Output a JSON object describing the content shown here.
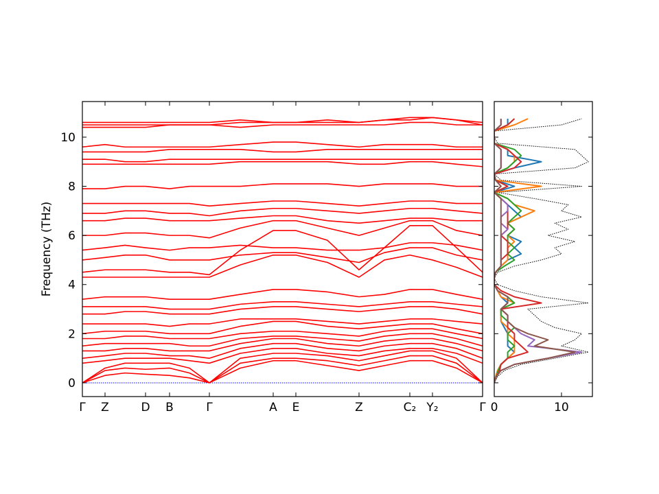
{
  "chart_data": [
    {
      "type": "line",
      "ylabel": "Frequency (THz)",
      "x": [
        0,
        0.33,
        0.62,
        0.92,
        1.27,
        1.56,
        1.85,
        2.3,
        2.78,
        3.11,
        3.57,
        4.03,
        4.4,
        4.77,
        5.1,
        5.45,
        5.83
      ],
      "xlim": [
        0,
        5.83
      ],
      "xticks": [
        {
          "value": 0,
          "label": "Γ"
        },
        {
          "value": 0.33,
          "label": "Z"
        },
        {
          "value": 0.92,
          "label": "D"
        },
        {
          "value": 1.27,
          "label": "B"
        },
        {
          "value": 1.85,
          "label": "Γ"
        },
        {
          "value": 2.78,
          "label": "A"
        },
        {
          "value": 3.11,
          "label": "E"
        },
        {
          "value": 4.03,
          "label": "Z"
        },
        {
          "value": 4.77,
          "label": "C₂"
        },
        {
          "value": 5.1,
          "label": "Y₂"
        },
        {
          "value": 5.83,
          "label": "Γ"
        }
      ],
      "ylim": [
        -0.56,
        11.45
      ],
      "yticks": [
        0,
        2,
        4,
        6,
        8,
        10
      ],
      "show_ytick_labels": true,
      "series": [
        {
          "color": "#0000ff",
          "dash": "dotted",
          "values": [
            0,
            0,
            0,
            0,
            0,
            0,
            0,
            0,
            0,
            0,
            0,
            0,
            0,
            0,
            0,
            0,
            0
          ]
        },
        {
          "color": "#ff0000",
          "values": [
            0,
            0.3,
            0.4,
            0.35,
            0.3,
            0.2,
            0,
            0.6,
            0.9,
            0.9,
            0.7,
            0.5,
            0.7,
            0.9,
            0.9,
            0.6,
            0
          ]
        },
        {
          "color": "#ff0000",
          "values": [
            0,
            0.5,
            0.6,
            0.55,
            0.6,
            0.4,
            0,
            0.8,
            1.0,
            1.0,
            0.9,
            0.7,
            0.9,
            1.1,
            1.1,
            0.8,
            0
          ]
        },
        {
          "color": "#ff0000",
          "values": [
            0,
            0.6,
            0.8,
            0.8,
            0.8,
            0.6,
            0,
            1.0,
            1.2,
            1.2,
            1.1,
            0.9,
            1.1,
            1.3,
            1.3,
            1.0,
            0
          ]
        },
        {
          "color": "#ff0000",
          "values": [
            0.8,
            0.9,
            1.0,
            1.0,
            1.0,
            0.9,
            0.8,
            1.2,
            1.4,
            1.4,
            1.2,
            1.1,
            1.3,
            1.4,
            1.4,
            1.2,
            0.8
          ]
        },
        {
          "color": "#ff0000",
          "values": [
            1.0,
            1.1,
            1.2,
            1.2,
            1.1,
            1.1,
            1.0,
            1.4,
            1.6,
            1.6,
            1.4,
            1.3,
            1.5,
            1.6,
            1.6,
            1.4,
            1.0
          ]
        },
        {
          "color": "#ff0000",
          "values": [
            1.3,
            1.3,
            1.4,
            1.4,
            1.3,
            1.3,
            1.3,
            1.6,
            1.8,
            1.8,
            1.6,
            1.5,
            1.7,
            1.8,
            1.8,
            1.6,
            1.3
          ]
        },
        {
          "color": "#ff0000",
          "values": [
            1.5,
            1.6,
            1.6,
            1.6,
            1.6,
            1.5,
            1.5,
            1.8,
            1.9,
            1.9,
            1.8,
            1.7,
            1.9,
            2.0,
            2.0,
            1.8,
            1.5
          ]
        },
        {
          "color": "#ff0000",
          "values": [
            1.8,
            1.8,
            1.9,
            1.9,
            1.8,
            1.8,
            1.8,
            2.0,
            2.1,
            2.1,
            2.0,
            1.9,
            2.1,
            2.2,
            2.2,
            2.0,
            1.8
          ]
        },
        {
          "color": "#ff0000",
          "values": [
            2.0,
            2.1,
            2.1,
            2.1,
            2.0,
            2.0,
            2.0,
            2.3,
            2.5,
            2.5,
            2.3,
            2.2,
            2.3,
            2.4,
            2.4,
            2.2,
            2.0
          ]
        },
        {
          "color": "#ff0000",
          "values": [
            2.4,
            2.4,
            2.4,
            2.4,
            2.3,
            2.4,
            2.4,
            2.6,
            2.6,
            2.6,
            2.5,
            2.4,
            2.5,
            2.6,
            2.6,
            2.5,
            2.4
          ]
        },
        {
          "color": "#ff0000",
          "values": [
            2.8,
            2.8,
            2.9,
            2.9,
            2.8,
            2.8,
            2.8,
            3.0,
            3.1,
            3.1,
            3.0,
            2.9,
            3.0,
            3.1,
            3.1,
            3.0,
            2.8
          ]
        },
        {
          "color": "#ff0000",
          "values": [
            3.1,
            3.1,
            3.1,
            3.1,
            3.0,
            3.0,
            3.0,
            3.2,
            3.3,
            3.3,
            3.2,
            3.1,
            3.2,
            3.3,
            3.3,
            3.2,
            3.1
          ]
        },
        {
          "color": "#ff0000",
          "values": [
            3.4,
            3.5,
            3.5,
            3.5,
            3.4,
            3.4,
            3.4,
            3.6,
            3.8,
            3.8,
            3.7,
            3.5,
            3.6,
            3.8,
            3.8,
            3.6,
            3.4
          ]
        },
        {
          "color": "#ff0000",
          "values": [
            4.3,
            4.3,
            4.3,
            4.3,
            4.3,
            4.3,
            4.3,
            4.8,
            5.2,
            5.2,
            4.9,
            4.3,
            5.0,
            5.2,
            5.0,
            4.7,
            4.3
          ]
        },
        {
          "color": "#ff0000",
          "values": [
            4.5,
            4.6,
            4.6,
            4.6,
            4.5,
            4.5,
            4.4,
            5.4,
            6.2,
            6.2,
            5.8,
            4.6,
            5.5,
            6.4,
            6.4,
            5.5,
            4.5
          ]
        },
        {
          "color": "#ff0000",
          "values": [
            5.0,
            5.1,
            5.2,
            5.2,
            5.0,
            5.0,
            5.0,
            5.2,
            5.3,
            5.3,
            5.1,
            4.9,
            5.3,
            5.5,
            5.5,
            5.2,
            5.0
          ]
        },
        {
          "color": "#ff0000",
          "values": [
            5.4,
            5.5,
            5.6,
            5.5,
            5.4,
            5.5,
            5.5,
            5.6,
            5.5,
            5.5,
            5.4,
            5.4,
            5.5,
            5.7,
            5.7,
            5.6,
            5.4
          ]
        },
        {
          "color": "#ff0000",
          "values": [
            6.0,
            6.0,
            6.1,
            6.1,
            6.0,
            6.0,
            5.9,
            6.3,
            6.6,
            6.6,
            6.3,
            6.0,
            6.3,
            6.6,
            6.6,
            6.2,
            6.0
          ]
        },
        {
          "color": "#ff0000",
          "values": [
            6.6,
            6.6,
            6.7,
            6.7,
            6.6,
            6.6,
            6.6,
            6.7,
            6.8,
            6.8,
            6.6,
            6.5,
            6.6,
            6.7,
            6.7,
            6.6,
            6.6
          ]
        },
        {
          "color": "#ff0000",
          "values": [
            6.9,
            6.9,
            7.0,
            7.0,
            6.9,
            6.9,
            6.8,
            7.0,
            7.1,
            7.1,
            7.0,
            6.9,
            7.0,
            7.1,
            7.1,
            7.0,
            6.9
          ]
        },
        {
          "color": "#ff0000",
          "values": [
            7.3,
            7.3,
            7.3,
            7.3,
            7.3,
            7.3,
            7.2,
            7.3,
            7.4,
            7.4,
            7.3,
            7.2,
            7.3,
            7.4,
            7.4,
            7.3,
            7.3
          ]
        },
        {
          "color": "#ff0000",
          "values": [
            7.9,
            7.9,
            8.0,
            8.0,
            7.9,
            8.0,
            8.0,
            8.0,
            8.1,
            8.1,
            8.1,
            8.0,
            8.1,
            8.1,
            8.1,
            8.0,
            8.0
          ]
        },
        {
          "color": "#ff0000",
          "values": [
            8.9,
            8.9,
            8.9,
            8.9,
            8.9,
            8.9,
            8.9,
            9.0,
            9.0,
            9.0,
            9.0,
            8.9,
            8.9,
            9.0,
            9.0,
            8.9,
            8.8
          ]
        },
        {
          "color": "#ff0000",
          "values": [
            9.1,
            9.1,
            9.0,
            9.0,
            9.1,
            9.1,
            9.1,
            9.1,
            9.1,
            9.1,
            9.1,
            9.1,
            9.1,
            9.1,
            9.1,
            9.1,
            9.1
          ]
        },
        {
          "color": "#ff0000",
          "values": [
            9.4,
            9.4,
            9.4,
            9.4,
            9.5,
            9.5,
            9.5,
            9.5,
            9.4,
            9.4,
            9.5,
            9.5,
            9.5,
            9.5,
            9.5,
            9.5,
            9.5
          ]
        },
        {
          "color": "#ff0000",
          "values": [
            9.6,
            9.7,
            9.6,
            9.6,
            9.6,
            9.6,
            9.6,
            9.7,
            9.8,
            9.8,
            9.7,
            9.6,
            9.7,
            9.7,
            9.7,
            9.6,
            9.6
          ]
        },
        {
          "color": "#ff0000",
          "values": [
            10.4,
            10.4,
            10.4,
            10.4,
            10.5,
            10.5,
            10.5,
            10.4,
            10.5,
            10.5,
            10.5,
            10.5,
            10.5,
            10.6,
            10.6,
            10.5,
            10.5
          ]
        },
        {
          "color": "#ff0000",
          "values": [
            10.5,
            10.5,
            10.5,
            10.5,
            10.5,
            10.5,
            10.5,
            10.6,
            10.6,
            10.6,
            10.6,
            10.6,
            10.7,
            10.8,
            10.8,
            10.7,
            10.5
          ]
        },
        {
          "color": "#ff0000",
          "values": [
            10.6,
            10.6,
            10.6,
            10.6,
            10.6,
            10.6,
            10.6,
            10.7,
            10.6,
            10.6,
            10.7,
            10.6,
            10.7,
            10.7,
            10.8,
            10.7,
            10.6
          ]
        }
      ]
    },
    {
      "type": "dos",
      "frequencies": [
        0,
        0.25,
        0.5,
        0.75,
        1,
        1.25,
        1.5,
        1.75,
        2,
        2.25,
        2.5,
        2.75,
        3,
        3.25,
        3.5,
        3.75,
        4,
        4.25,
        4.5,
        4.75,
        5,
        5.25,
        5.5,
        5.75,
        6,
        6.25,
        6.5,
        6.75,
        7,
        7.25,
        7.5,
        7.75,
        8,
        8.25,
        8.5,
        8.75,
        9,
        9.25,
        9.5,
        9.75,
        10,
        10.25,
        10.5,
        10.75
      ],
      "xlim": [
        0,
        14.6
      ],
      "xticks": [
        0,
        10
      ],
      "ylim": [
        -0.56,
        11.45
      ],
      "yticks": [
        0,
        2,
        4,
        6,
        8,
        10
      ],
      "show_ytick_labels": false,
      "series": [
        {
          "color": "#000000",
          "dash": "dotted",
          "values": [
            0,
            0.5,
            1.5,
            4,
            9,
            14,
            10,
            12,
            13,
            9,
            7,
            6,
            5,
            14,
            7,
            3,
            0.5,
            0,
            0.5,
            3,
            7,
            10,
            9,
            12,
            8,
            11,
            9,
            13,
            10,
            11,
            6,
            0.5,
            13,
            1,
            0,
            12,
            14,
            13,
            12,
            0.5,
            0,
            0,
            10,
            13
          ]
        },
        {
          "color": "#1f77b4",
          "values": [
            0,
            0.2,
            0.5,
            1,
            2,
            3,
            2,
            2,
            2,
            1.5,
            1,
            1,
            1,
            2,
            1,
            0.5,
            0,
            0,
            0.2,
            1,
            2,
            4,
            3,
            4,
            2,
            3,
            2,
            4,
            3,
            2,
            1,
            0,
            3,
            0.2,
            0,
            3,
            7,
            2,
            2,
            0,
            0,
            0,
            2,
            2
          ]
        },
        {
          "color": "#ff7f0e",
          "values": [
            0,
            0.2,
            0.5,
            1,
            2,
            3,
            3,
            3,
            2,
            2,
            1,
            1,
            1,
            3,
            1,
            0.5,
            0,
            0,
            0.2,
            1,
            2,
            2,
            2,
            3,
            2,
            3,
            2,
            4,
            6,
            3,
            2,
            0,
            7,
            0.2,
            0,
            2,
            3,
            3,
            2,
            0,
            0,
            0,
            3,
            5
          ]
        },
        {
          "color": "#2ca02c",
          "values": [
            0,
            0.3,
            0.6,
            1,
            2,
            2,
            3,
            2,
            2,
            3,
            2,
            1,
            1,
            3,
            2,
            0.5,
            0,
            0,
            0.2,
            1.5,
            3,
            2,
            3,
            2,
            2,
            3,
            2,
            3,
            4,
            3,
            2,
            0,
            2,
            0.2,
            0,
            2,
            3,
            4,
            3,
            0,
            0,
            0,
            2,
            3
          ]
        },
        {
          "color": "#d62728",
          "values": [
            0,
            0.3,
            0.8,
            1,
            2,
            5,
            4,
            3,
            3,
            2,
            2,
            2,
            1,
            7,
            3,
            1,
            0,
            0,
            0.2,
            1,
            1,
            2,
            2,
            2,
            1,
            2,
            2,
            2,
            2,
            2,
            1,
            0,
            2,
            0.2,
            0,
            3,
            4,
            3,
            2,
            0,
            0,
            0,
            2,
            3
          ]
        },
        {
          "color": "#9467bd",
          "values": [
            0,
            0.3,
            1,
            3,
            8,
            13,
            5,
            6,
            4,
            3,
            2,
            2,
            1,
            2,
            2,
            0.5,
            0,
            0,
            0.2,
            1,
            1,
            1,
            1,
            1,
            1,
            2,
            1,
            1,
            2,
            2,
            1,
            0,
            1,
            0.2,
            0,
            1,
            1,
            1,
            1,
            0,
            0,
            0,
            1,
            1
          ]
        },
        {
          "color": "#8c564b",
          "values": [
            0,
            0.3,
            1,
            3,
            8,
            12,
            6,
            8,
            5,
            3,
            2,
            2,
            1,
            2,
            2,
            0.5,
            0,
            0,
            0.2,
            1,
            1,
            1,
            1,
            1,
            1,
            1,
            1,
            1,
            1,
            1,
            1,
            0,
            1,
            0.2,
            0,
            1,
            1,
            1,
            1,
            0,
            0,
            0,
            1,
            1
          ]
        }
      ]
    }
  ]
}
